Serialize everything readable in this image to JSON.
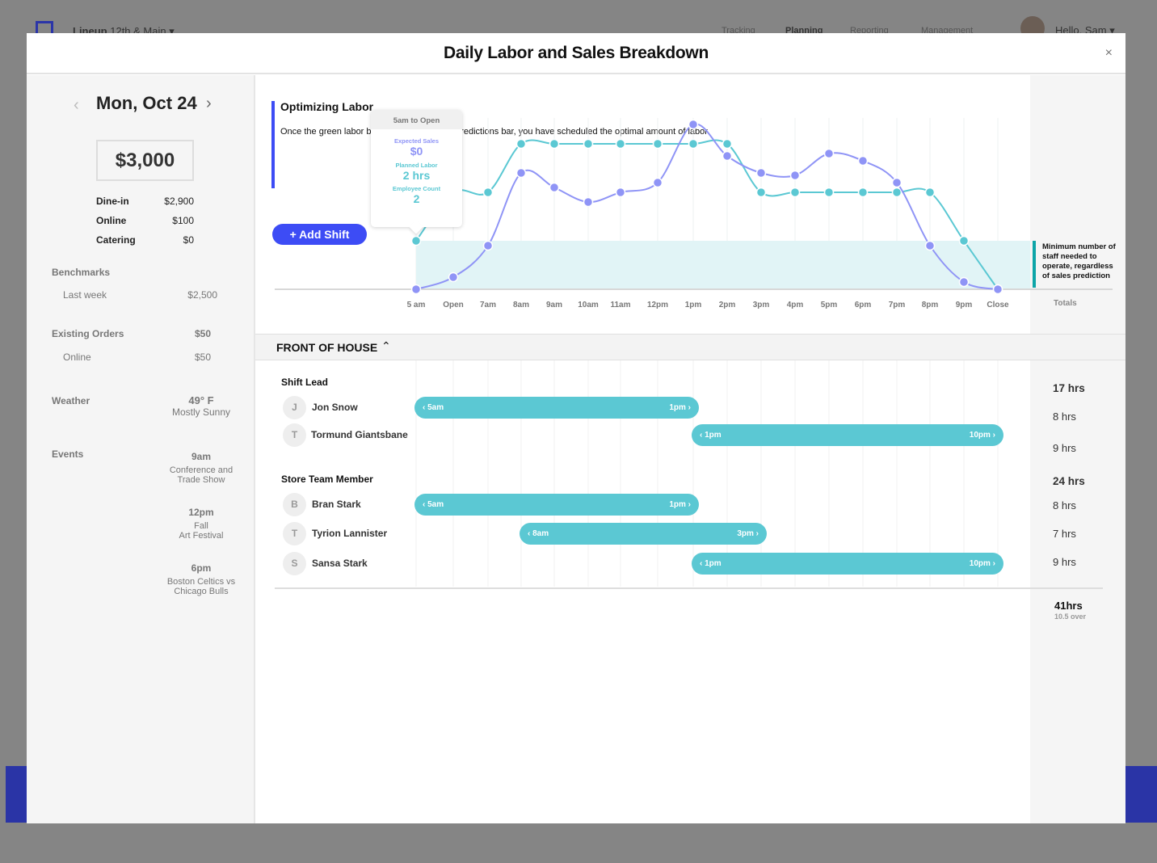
{
  "background": {
    "brand": "Lineup",
    "location": "12th & Main",
    "nav": [
      "Tracking",
      "Planning",
      "Reporting",
      "Management"
    ],
    "greeting": "Hello, Sam"
  },
  "modal": {
    "title": "Daily Labor and Sales Breakdown",
    "close": "×"
  },
  "left": {
    "date": "Mon, Oct 24",
    "prev": "‹",
    "next": "›",
    "total": "$3,000",
    "breakdown": [
      {
        "label": "Dine-in",
        "value": "$2,900"
      },
      {
        "label": "Online",
        "value": "$100"
      },
      {
        "label": "Catering",
        "value": "$0"
      }
    ],
    "benchmarks": {
      "title": "Benchmarks",
      "label": "Last week",
      "value": "$2,500"
    },
    "orders": {
      "title": "Existing Orders",
      "total": "$50",
      "label": "Online",
      "value": "$50"
    },
    "weather": {
      "title": "Weather",
      "temp": "49° F",
      "desc": "Mostly Sunny"
    },
    "events": {
      "title": "Events",
      "items": [
        {
          "time": "9am",
          "l1": "Conference and",
          "l2": "Trade Show"
        },
        {
          "time": "12pm",
          "l1": "Fall",
          "l2": "Art Festival"
        },
        {
          "time": "6pm",
          "l1": "Boston Celtics vs",
          "l2": "Chicago Bulls"
        }
      ]
    }
  },
  "info": {
    "title": "Optimizing Labor",
    "text": "Once the green labor bar matches the sales predictions bar, you have scheduled the optimal amount of labor.",
    "add_shift": "+ Add Shift",
    "min_note": "Minimum number of staff needed to operate, regardless of sales prediction",
    "totals_label": "Totals"
  },
  "tooltip": {
    "title": "5am to Open",
    "sales_label": "Expected Sales",
    "sales": "$0",
    "labor_label": "Planned Labor",
    "labor": "2 hrs",
    "count_label": "Employee Count",
    "count": "2"
  },
  "chart_data": {
    "type": "line",
    "categories": [
      "5 am",
      "Open",
      "7am",
      "8am",
      "9am",
      "10am",
      "11am",
      "12pm",
      "1pm",
      "2pm",
      "3pm",
      "4pm",
      "5pm",
      "6pm",
      "7pm",
      "8pm",
      "9pm",
      "Close"
    ],
    "series": [
      {
        "name": "Expected Sales",
        "color": "#8f94f6",
        "values": [
          0,
          0.5,
          1.8,
          4.8,
          4.2,
          3.6,
          4.0,
          4.4,
          6.8,
          5.5,
          4.8,
          4.7,
          5.6,
          5.3,
          4.4,
          1.8,
          0.3,
          0
        ]
      },
      {
        "name": "Planned Labor",
        "color": "#5bc8d3",
        "values": [
          2,
          4,
          4,
          6,
          6,
          6,
          6,
          6,
          6,
          6,
          4,
          4,
          4,
          4,
          4,
          4,
          2,
          0
        ]
      }
    ],
    "minimum_staff": 2,
    "ylim": [
      0,
      7
    ]
  },
  "schedule": {
    "section": "FRONT OF HOUSE",
    "groups": [
      {
        "title": "Shift Lead",
        "total": "17 hrs",
        "people": [
          {
            "initial": "J",
            "name": "Jon Snow",
            "start": "5am",
            "end": "1pm",
            "from": 0,
            "to": 8,
            "hours": "8 hrs"
          },
          {
            "initial": "T",
            "name": "Tormund Giantsbane",
            "start": "1pm",
            "end": "10pm",
            "from": 8,
            "to": 17,
            "hours": "9 hrs"
          }
        ]
      },
      {
        "title": "Store Team Member",
        "total": "24 hrs",
        "people": [
          {
            "initial": "B",
            "name": "Bran Stark",
            "start": "5am",
            "end": "1pm",
            "from": 0,
            "to": 8,
            "hours": "8 hrs"
          },
          {
            "initial": "T",
            "name": "Tyrion Lannister",
            "start": "8am",
            "end": "3pm",
            "from": 3,
            "to": 10,
            "hours": "7 hrs"
          },
          {
            "initial": "S",
            "name": "Sansa Stark",
            "start": "1pm",
            "end": "10pm",
            "from": 8,
            "to": 17,
            "hours": "9 hrs"
          }
        ]
      }
    ],
    "grand_total": "41hrs",
    "over": "10.5 over"
  },
  "colors": {
    "accent": "#3d4cf5",
    "teal": "#5bc8d3",
    "purple": "#8f94f6",
    "band": "#e1f4f6",
    "note": "#0ea5a8"
  }
}
